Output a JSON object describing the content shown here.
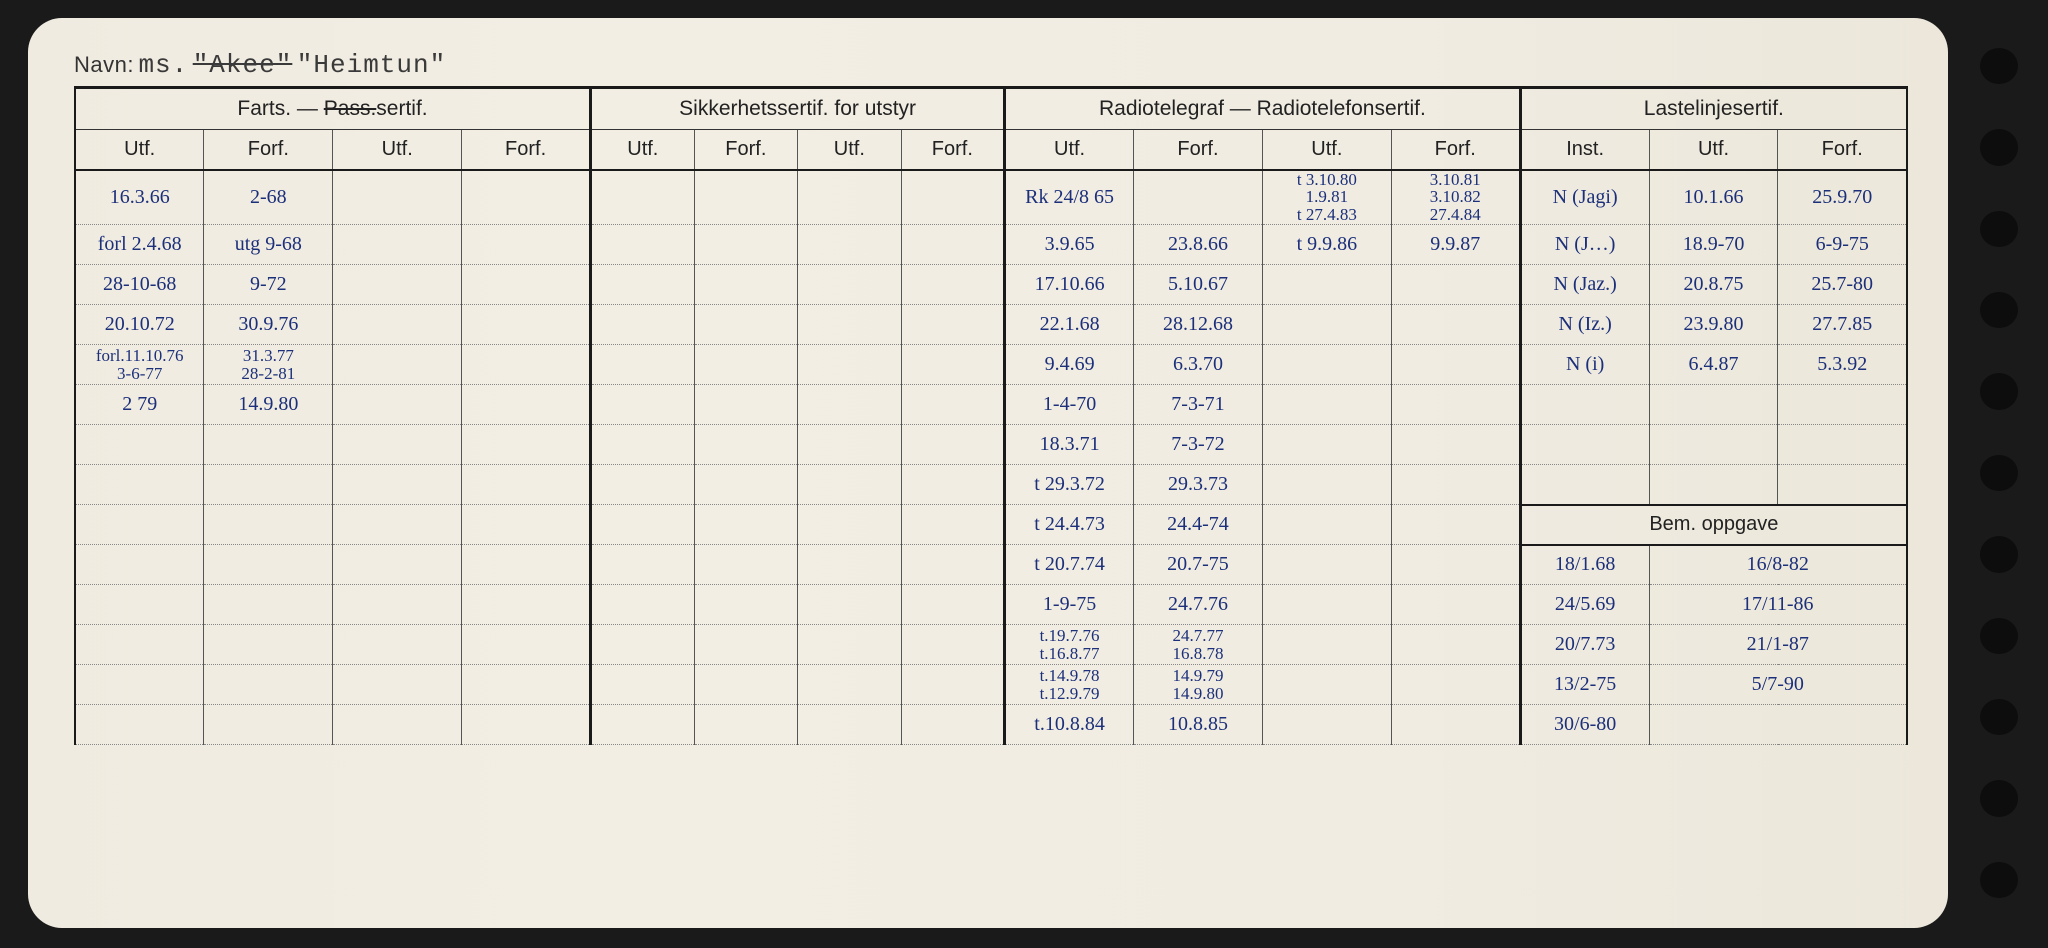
{
  "header": {
    "navn_label": "Navn:",
    "prefix": "ms.",
    "struck": "\"Akee\"",
    "name": "\"Heimtun\""
  },
  "sections": {
    "farts": {
      "title_a": "Farts.",
      "title_b": "—",
      "title_c_struck": "Pass.",
      "title_c_tail": "sertif."
    },
    "sikkerhet": "Sikkerhetssertif. for utstyr",
    "radio": "Radiotelegraf — Radiotelefonsertif.",
    "laste": "Lastelinjesertif.",
    "bem": "Bem. oppgave"
  },
  "sub": {
    "utf": "Utf.",
    "forf": "Forf.",
    "inst": "Inst."
  },
  "rows": [
    {
      "f_utf": "16.3.66",
      "f_forf": "2-68",
      "r_utf": "Rk 24/8 65",
      "r_forf": "",
      "r_utf2_stack": [
        "t 3.10.80",
        "1.9.81",
        "t 27.4.83"
      ],
      "r_forf2_stack": [
        "3.10.81",
        "3.10.82",
        "27.4.84"
      ],
      "l_inst": "N (Jagi)",
      "l_utf": "10.1.66",
      "l_forf": "25.9.70"
    },
    {
      "f_utf": "forl 2.4.68",
      "f_forf": "utg 9-68",
      "r_utf": "3.9.65",
      "r_forf": "23.8.66",
      "r_utf2": "t 9.9.86",
      "r_forf2": "9.9.87",
      "l_inst": "N (J…)",
      "l_utf": "18.9-70",
      "l_forf": "6-9-75"
    },
    {
      "f_utf": "28-10-68",
      "f_forf": "9-72",
      "r_utf": "17.10.66",
      "r_forf": "5.10.67",
      "l_inst": "N (Jaz.)",
      "l_utf": "20.8.75",
      "l_forf": "25.7-80"
    },
    {
      "f_utf": "20.10.72",
      "f_forf": "30.9.76",
      "r_utf": "22.1.68",
      "r_forf": "28.12.68",
      "l_inst": "N (Iz.)",
      "l_utf": "23.9.80",
      "l_forf": "27.7.85"
    },
    {
      "f_utf_stack": [
        "forl.11.10.76",
        "3-6-77"
      ],
      "f_forf_stack": [
        "31.3.77",
        "28-2-81"
      ],
      "r_utf": "9.4.69",
      "r_forf": "6.3.70",
      "l_inst": "N (i)",
      "l_utf": "6.4.87",
      "l_forf": "5.3.92"
    },
    {
      "f_utf": "2   79",
      "f_forf": "14.9.80",
      "r_utf": "1-4-70",
      "r_forf": "7-3-71"
    },
    {
      "r_utf": "18.3.71",
      "r_forf": "7-3-72"
    },
    {
      "r_utf": "t 29.3.72",
      "r_forf": "29.3.73"
    },
    {
      "r_utf": "t 24.4.73",
      "r_forf": "24.4-74",
      "bem_row": "header"
    },
    {
      "r_utf": "t 20.7.74",
      "r_forf": "20.7-75",
      "b1": "18/1.68",
      "b2": "16/8-82"
    },
    {
      "r_utf": "1-9-75",
      "r_forf": "24.7.76",
      "b1": "24/5.69",
      "b2": "17/11-86"
    },
    {
      "r_utf_stack": [
        "t.19.7.76",
        "t.16.8.77"
      ],
      "r_forf_stack": [
        "24.7.77",
        "16.8.78"
      ],
      "b1": "20/7.73",
      "b2": "21/1-87"
    },
    {
      "r_utf_stack": [
        "t.14.9.78",
        "t.12.9.79"
      ],
      "r_forf_stack": [
        "14.9.79",
        "14.9.80"
      ],
      "b1": "13/2-75",
      "b2": "5/7-90"
    },
    {
      "r_utf": "t.10.8.84",
      "r_forf": "10.8.85",
      "b1": "30/6-80",
      "b2": ""
    }
  ],
  "colors": {
    "ink": "#1b2f7a",
    "print": "#222",
    "card": "#f0ece2",
    "bg": "#1a1a1a"
  }
}
